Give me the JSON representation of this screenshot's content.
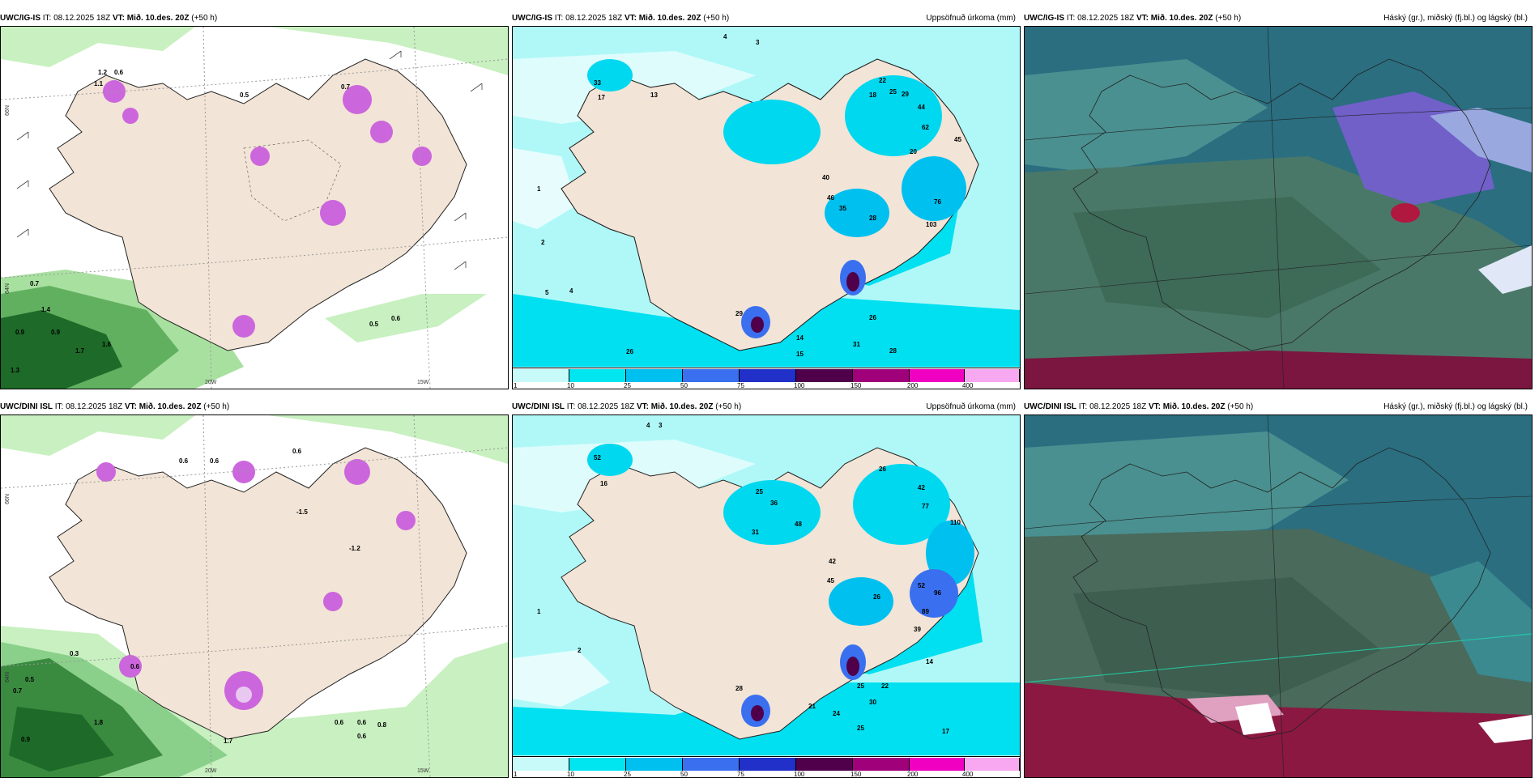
{
  "rows": [
    {
      "model": "UWC/IG-IS",
      "it_label": "IT:",
      "it_value": "08.12.2025 18Z",
      "vt_label": "VT:",
      "vt_value": "Mið. 10.des. 20Z",
      "lead": "(+50 h)"
    },
    {
      "model": "UWC/DINI ISL",
      "it_label": "IT:",
      "it_value": "08.12.2025 18Z",
      "vt_label": "VT:",
      "vt_value": "Mið. 10.des. 20Z",
      "lead": "(+50 h)"
    }
  ],
  "precip_title": "Uppsöfnuð úrkoma (mm)",
  "cloud_title": "Háský (gr.), miðský (fj.bl.) og lágský (bl.)",
  "colorbar": {
    "labels": [
      "1",
      "10",
      "25",
      "50",
      "75",
      "100",
      "150",
      "200",
      "400"
    ],
    "colors": [
      "#c8fafa",
      "#00e6f0",
      "#00c0f0",
      "#3a70f0",
      "#2030c8",
      "#50004a",
      "#a0007a",
      "#f000c0",
      "#f8a8f0"
    ]
  },
  "axis_labels": {
    "lat66": "66N",
    "lat64": "64N",
    "lon20": "20W",
    "lon15": "15W"
  },
  "top": {
    "left_labels": [
      "0.7",
      "1.2",
      "0.6",
      "1.1",
      "0.5",
      "0.7",
      "0.9",
      "0.9",
      "1.7",
      "0.5",
      "0.6",
      "1.3",
      "1.4",
      "1.6"
    ],
    "mid_labels": [
      "33",
      "17",
      "13",
      "4",
      "3",
      "22",
      "25",
      "29",
      "18",
      "44",
      "62",
      "45",
      "20",
      "40",
      "46",
      "35",
      "28",
      "76",
      "103",
      "26",
      "31",
      "28",
      "29",
      "14",
      "15",
      "26",
      "5",
      "4",
      "2",
      "1"
    ]
  },
  "bottom": {
    "left_labels": [
      "0.6",
      "0.6",
      "0.6",
      "-1.5",
      "-1.2",
      "0.5",
      "0.7",
      "0.9",
      "1.8",
      "1.7",
      "0.6",
      "0.6",
      "0.8",
      "0.6",
      "0.3",
      "0.6"
    ],
    "mid_labels": [
      "52",
      "16",
      "3",
      "4",
      "26",
      "42",
      "77",
      "110",
      "25",
      "36",
      "48",
      "31",
      "42",
      "45",
      "26",
      "52",
      "96",
      "89",
      "39",
      "14",
      "25",
      "22",
      "30",
      "21",
      "24",
      "25",
      "28",
      "17",
      "2",
      "1"
    ]
  }
}
